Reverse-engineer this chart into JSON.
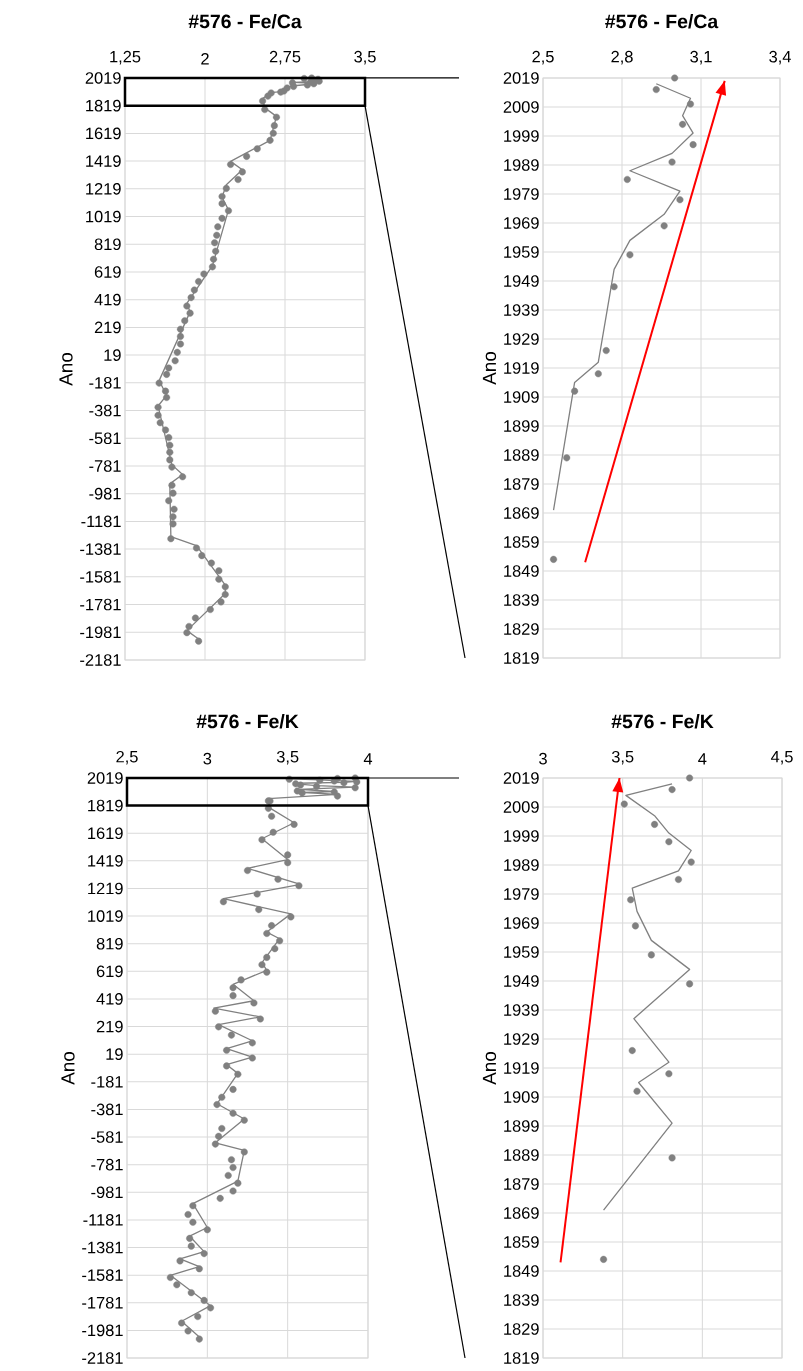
{
  "chart_data": [
    {
      "type": "scatter",
      "title": "#576 - Fe/Ca",
      "ylabel": "Ano",
      "grid": true,
      "xlim": [
        1.25,
        3.5
      ],
      "xticks": [
        {
          "value": 1.25,
          "label": "1,25"
        },
        2,
        {
          "value": 2.75,
          "label": "2,75"
        },
        {
          "value": 3.5,
          "label": "3,5"
        }
      ],
      "ylim": [
        -2181,
        2019
      ],
      "yticks": [
        2019,
        1819,
        1619,
        1419,
        1219,
        1019,
        819,
        619,
        419,
        219,
        19,
        -181,
        -381,
        -581,
        -781,
        -981,
        -1181,
        -1381,
        -1581,
        -1781,
        -1981,
        -2181
      ],
      "series": [
        {
          "type": "scatter",
          "marker": "circle",
          "color": "#808080",
          "x": [
            3.0,
            2.93,
            3.06,
            3.03,
            3.07,
            2.99,
            2.82,
            3.02,
            2.96,
            2.83,
            2.77,
            2.74,
            2.71,
            2.62,
            2.59,
            2.54,
            2.56,
            2.67,
            2.65,
            2.64,
            2.61,
            2.49,
            2.39,
            2.24,
            2.35,
            2.31,
            2.2,
            2.16,
            2.16,
            2.22,
            2.16,
            2.12,
            2.11,
            2.09,
            2.1,
            2.08,
            2.07,
            1.99,
            1.94,
            1.9,
            1.87,
            1.83,
            1.86,
            1.81,
            1.77,
            1.77,
            1.77,
            1.74,
            1.72,
            1.66,
            1.64,
            1.57,
            1.63,
            1.64,
            1.56,
            1.56,
            1.58,
            1.63,
            1.66,
            1.67,
            1.67,
            1.67,
            1.69,
            1.79,
            1.69,
            1.7,
            1.66,
            1.71,
            1.7,
            1.7,
            1.68,
            1.92,
            1.97,
            2.06,
            2.13,
            2.13,
            2.19,
            2.19,
            2.15,
            2.05,
            1.91,
            1.85,
            1.83,
            1.94
          ],
          "values": [
            2019,
            2015,
            2010,
            2003,
            1996,
            1990,
            1984,
            1977,
            1968,
            1958,
            1947,
            1925,
            1917,
            1911,
            1888,
            1853,
            1791,
            1736,
            1675,
            1620,
            1569,
            1508,
            1453,
            1395,
            1341,
            1286,
            1222,
            1164,
            1112,
            1061,
            1006,
            945,
            884,
            830,
            769,
            711,
            656,
            604,
            550,
            489,
            434,
            373,
            322,
            267,
            206,
            154,
            99,
            39,
            -22,
            -74,
            -120,
            -183,
            -241,
            -287,
            -357,
            -415,
            -469,
            -521,
            -576,
            -631,
            -682,
            -737,
            -789,
            -859,
            -920,
            -977,
            -1032,
            -1093,
            -1148,
            -1199,
            -1306,
            -1373,
            -1428,
            -1482,
            -1537,
            -1598,
            -1653,
            -1708,
            -1762,
            -1817,
            -1878,
            -1939,
            -1984,
            -2045
          ]
        },
        {
          "type": "line",
          "marker": "none",
          "color": "#808080",
          "x": [
            2.93,
            3.06,
            3.03,
            3.07,
            2.99,
            2.83,
            3.02,
            2.96,
            2.83,
            2.77,
            2.71,
            2.62,
            2.54,
            2.56,
            2.67,
            2.61,
            2.24,
            2.35,
            2.2,
            2.16,
            2.22,
            2.07,
            1.83,
            1.86,
            1.57,
            1.64,
            1.56,
            1.69,
            1.79,
            1.67,
            1.68,
            1.92,
            2.19,
            2.19,
            1.83,
            1.94
          ],
          "values": [
            2017,
            2012,
            2006,
            2000,
            1993,
            1987,
            1980,
            1972,
            1963,
            1953,
            1921,
            1914,
            1870,
            1803,
            1742,
            1569,
            1417,
            1356,
            1249,
            1158,
            1067,
            665,
            392,
            331,
            -165,
            -271,
            -348,
            -773,
            -843,
            -910,
            -1291,
            -1355,
            -1641,
            -1701,
            -1969,
            -2030
          ]
        }
      ]
    },
    {
      "type": "scatter",
      "title": "#576 - Fe/Ca",
      "ylabel": "Ano",
      "grid": true,
      "xlim": [
        2.5,
        3.4
      ],
      "xticks": [
        {
          "value": 2.5,
          "label": "2,5"
        },
        {
          "value": 2.8,
          "label": "2,8"
        },
        {
          "value": 3.1,
          "label": "3,1"
        },
        {
          "value": 3.4,
          "label": "3,4"
        }
      ],
      "ylim": [
        1819,
        2019
      ],
      "yticks": [
        2019,
        2009,
        1999,
        1989,
        1979,
        1969,
        1959,
        1949,
        1939,
        1929,
        1919,
        1909,
        1899,
        1889,
        1879,
        1869,
        1859,
        1849,
        1839,
        1829,
        1819
      ],
      "series": [
        {
          "type": "scatter",
          "marker": "circle",
          "color": "#808080",
          "x": [
            3.0,
            2.93,
            3.06,
            3.03,
            3.07,
            2.99,
            2.82,
            3.02,
            2.96,
            2.83,
            2.77,
            2.74,
            2.71,
            2.62,
            2.59,
            2.54
          ],
          "values": [
            2019,
            2015,
            2010,
            2003,
            1996,
            1990,
            1984,
            1977,
            1968,
            1958,
            1947,
            1925,
            1917,
            1911,
            1888,
            1853
          ]
        },
        {
          "type": "line",
          "marker": "none",
          "color": "#808080",
          "x": [
            2.93,
            3.06,
            3.03,
            3.07,
            2.99,
            2.83,
            3.02,
            2.96,
            2.83,
            2.77,
            2.71,
            2.62,
            2.54
          ],
          "values": [
            2017,
            2012,
            2006,
            2000,
            1993,
            1987,
            1980,
            1972,
            1963,
            1953,
            1921,
            1914,
            1870
          ]
        },
        {
          "type": "line",
          "marker": "none",
          "color": "#ff0000",
          "x": [
            2.66,
            3.19
          ],
          "values": [
            1852,
            2018
          ]
        }
      ]
    },
    {
      "type": "scatter",
      "title": "#576 - Fe/K",
      "ylabel": "Ano",
      "grid": true,
      "xlim": [
        2.5,
        4
      ],
      "xticks": [
        {
          "value": 2.5,
          "label": "2,5"
        },
        3,
        {
          "value": 3.5,
          "label": "3,5"
        },
        4
      ],
      "ylim": [
        -2181,
        2019
      ],
      "yticks": [
        2019,
        1819,
        1619,
        1419,
        1219,
        1019,
        819,
        619,
        419,
        219,
        19,
        -181,
        -381,
        -581,
        -781,
        -981,
        -1181,
        -1381,
        -1581,
        -1781,
        -1981,
        -2181
      ],
      "series": [
        {
          "type": "scatter",
          "marker": "circle",
          "color": "#808080",
          "x": [
            3.92,
            3.81,
            3.51,
            3.7,
            3.79,
            3.93,
            3.85,
            3.55,
            3.58,
            3.68,
            3.92,
            3.56,
            3.79,
            3.59,
            3.81,
            3.38,
            3.39,
            3.38,
            3.4,
            3.54,
            3.41,
            3.34,
            3.5,
            3.5,
            3.25,
            3.44,
            3.57,
            3.31,
            3.1,
            3.32,
            3.52,
            3.4,
            3.37,
            3.45,
            3.42,
            3.37,
            3.34,
            3.37,
            3.21,
            3.16,
            3.16,
            3.29,
            3.05,
            3.33,
            3.07,
            3.15,
            3.28,
            3.12,
            3.28,
            3.12,
            3.19,
            3.16,
            3.09,
            3.06,
            3.16,
            3.23,
            3.09,
            3.07,
            3.05,
            3.23,
            3.15,
            3.16,
            3.13,
            3.19,
            3.16,
            3.08,
            2.91,
            2.88,
            2.91,
            3.0,
            2.89,
            2.9,
            2.98,
            2.83,
            2.95,
            2.77,
            2.81,
            2.9,
            2.98,
            3.02,
            2.94,
            2.84,
            2.88,
            2.95
          ],
          "values": [
            2019,
            2015,
            2010,
            2003,
            1997,
            1990,
            1984,
            1977,
            1968,
            1958,
            1948,
            1925,
            1917,
            1911,
            1888,
            1853,
            1852,
            1799,
            1742,
            1683,
            1626,
            1572,
            1462,
            1406,
            1349,
            1286,
            1239,
            1179,
            1123,
            1066,
            1013,
            950,
            893,
            840,
            783,
            720,
            667,
            613,
            557,
            500,
            443,
            390,
            330,
            274,
            217,
            157,
            101,
            47,
            -9,
            -66,
            -126,
            -236,
            -293,
            -346,
            -409,
            -459,
            -519,
            -576,
            -632,
            -689,
            -745,
            -802,
            -859,
            -915,
            -972,
            -1025,
            -1079,
            -1142,
            -1198,
            -1252,
            -1315,
            -1371,
            -1425,
            -1478,
            -1535,
            -1598,
            -1651,
            -1708,
            -1764,
            -1818,
            -1881,
            -1928,
            -1985,
            -2044
          ]
        },
        {
          "type": "line",
          "marker": "none",
          "color": "#808080",
          "x": [
            3.81,
            3.52,
            3.7,
            3.79,
            3.93,
            3.85,
            3.56,
            3.59,
            3.68,
            3.92,
            3.57,
            3.79,
            3.6,
            3.81,
            3.38,
            3.39,
            3.38,
            3.54,
            3.34,
            3.5,
            3.25,
            3.58,
            3.1,
            3.52,
            3.37,
            3.45,
            3.34,
            3.37,
            3.16,
            3.29,
            3.04,
            3.33,
            3.07,
            3.28,
            3.12,
            3.28,
            3.12,
            3.19,
            3.06,
            3.23,
            3.05,
            3.23,
            3.19,
            2.91,
            3.0,
            2.89,
            2.98,
            2.83,
            2.95,
            2.77,
            3.02,
            2.84,
            2.95
          ],
          "values": [
            2017,
            2013,
            2006,
            2000,
            1994,
            1987,
            1981,
            1973,
            1963,
            1953,
            1936,
            1921,
            1914,
            1900,
            1870,
            1850,
            1808,
            1695,
            1579,
            1428,
            1365,
            1248,
            1145,
            1035,
            903,
            855,
            682,
            626,
            525,
            406,
            352,
            289,
            233,
            116,
            60,
            -3,
            -57,
            -120,
            -340,
            -450,
            -623,
            -677,
            -900,
            -1063,
            -1236,
            -1299,
            -1411,
            -1463,
            -1519,
            -1582,
            -1802,
            -1915,
            -2029
          ]
        }
      ]
    },
    {
      "type": "scatter",
      "title": "#576 - Fe/K",
      "ylabel": "Ano",
      "grid": true,
      "xlim": [
        3,
        4.5
      ],
      "xticks": [
        3,
        {
          "value": 3.5,
          "label": "3,5"
        },
        4,
        {
          "value": 4.5,
          "label": "4,5"
        }
      ],
      "ylim": [
        1819,
        2019
      ],
      "yticks": [
        2019,
        2009,
        1999,
        1989,
        1979,
        1969,
        1959,
        1949,
        1939,
        1929,
        1919,
        1909,
        1899,
        1889,
        1879,
        1869,
        1859,
        1849,
        1839,
        1829,
        1819
      ],
      "series": [
        {
          "type": "scatter",
          "marker": "circle",
          "color": "#808080",
          "x": [
            3.92,
            3.81,
            3.51,
            3.7,
            3.79,
            3.93,
            3.85,
            3.55,
            3.58,
            3.68,
            3.92,
            3.56,
            3.79,
            3.59,
            3.81,
            3.38
          ],
          "values": [
            2019,
            2015,
            2010,
            2003,
            1997,
            1990,
            1984,
            1977,
            1968,
            1958,
            1948,
            1925,
            1917,
            1911,
            1888,
            1853
          ]
        },
        {
          "type": "line",
          "marker": "none",
          "color": "#808080",
          "x": [
            3.81,
            3.52,
            3.7,
            3.79,
            3.93,
            3.85,
            3.56,
            3.59,
            3.68,
            3.92,
            3.57,
            3.79,
            3.6,
            3.81,
            3.38
          ],
          "values": [
            2017,
            2013,
            2006,
            2000,
            1994,
            1987,
            1981,
            1973,
            1963,
            1953,
            1936,
            1921,
            1914,
            1900,
            1870
          ]
        },
        {
          "type": "line",
          "marker": "none",
          "color": "#ff0000",
          "x": [
            3.11,
            3.48
          ],
          "values": [
            1852,
            2019
          ]
        }
      ]
    }
  ]
}
